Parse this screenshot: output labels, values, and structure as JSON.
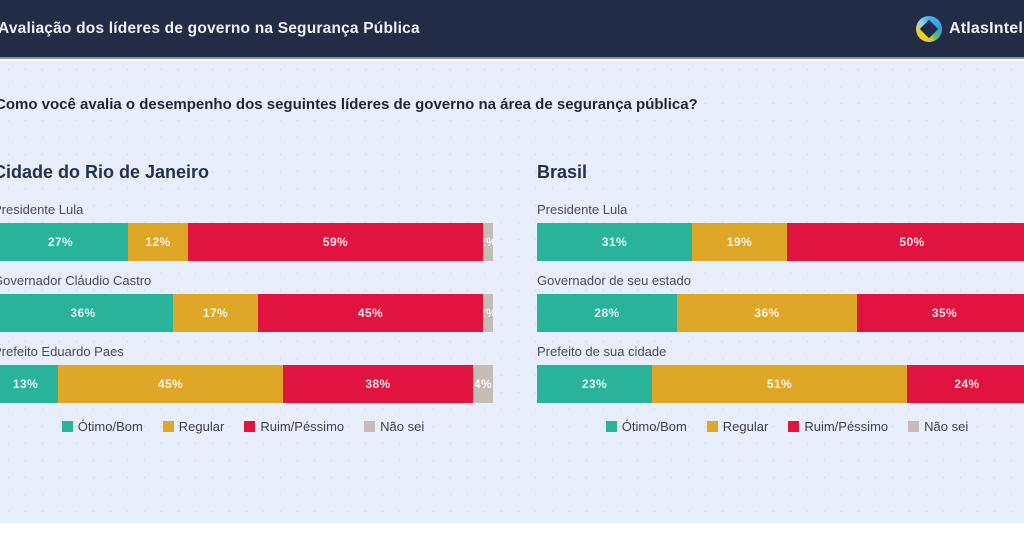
{
  "header": {
    "title": "Avaliação dos líderes de governo na Segurança Pública",
    "brand": "AtlasIntel"
  },
  "question": "Como você avalia o desempenho dos seguintes líderes de governo na área de segurança pública?",
  "colors": {
    "header_bg": "#232c47",
    "page_bg": "#e8eefb",
    "otimo_bom": "#29b39a",
    "regular": "#dfa728",
    "ruim_pessimo": "#e0143e",
    "nao_sei": "#c5bcb4"
  },
  "legend": {
    "items": [
      {
        "label": "Ótimo/Bom",
        "color": "#29b39a"
      },
      {
        "label": "Regular",
        "color": "#dfa728"
      },
      {
        "label": "Ruim/Péssimo",
        "color": "#e0143e"
      },
      {
        "label": "Não sei",
        "color": "#c5bcb4"
      }
    ]
  },
  "chart_data": [
    {
      "type": "bar",
      "stacked": true,
      "orientation": "horizontal",
      "unit": "%",
      "title": "Cidade do Rio de Janeiro",
      "series_names": [
        "Ótimo/Bom",
        "Regular",
        "Ruim/Péssimo",
        "Não sei"
      ],
      "rows": [
        {
          "category": "Presidente Lula",
          "segments": [
            {
              "name": "Ótimo/Bom",
              "pct": 27,
              "label": "27%",
              "color": "#29b39a"
            },
            {
              "name": "Regular",
              "pct": 12,
              "label": "12%",
              "color": "#dfa728"
            },
            {
              "name": "Ruim/Péssimo",
              "pct": 59,
              "label": "59%",
              "color": "#e0143e"
            },
            {
              "name": "Não sei",
              "pct": 2,
              "label": "2%",
              "color": "#c5bcb4"
            }
          ]
        },
        {
          "category": "Governador Cláudio Castro",
          "segments": [
            {
              "name": "Ótimo/Bom",
              "pct": 36,
              "label": "36%",
              "color": "#29b39a"
            },
            {
              "name": "Regular",
              "pct": 17,
              "label": "17%",
              "color": "#dfa728"
            },
            {
              "name": "Ruim/Péssimo",
              "pct": 45,
              "label": "45%",
              "color": "#e0143e"
            },
            {
              "name": "Não sei",
              "pct": 2,
              "label": "2%",
              "color": "#c5bcb4"
            }
          ]
        },
        {
          "category": "Prefeito Eduardo Paes",
          "segments": [
            {
              "name": "Ótimo/Bom",
              "pct": 13,
              "label": "13%",
              "color": "#29b39a"
            },
            {
              "name": "Regular",
              "pct": 45,
              "label": "45%",
              "color": "#dfa728"
            },
            {
              "name": "Ruim/Péssimo",
              "pct": 38,
              "label": "38%",
              "color": "#e0143e"
            },
            {
              "name": "Não sei",
              "pct": 4,
              "label": "4%",
              "color": "#c5bcb4"
            }
          ]
        }
      ]
    },
    {
      "type": "bar",
      "stacked": true,
      "orientation": "horizontal",
      "unit": "%",
      "title": "Brasil",
      "series_names": [
        "Ótimo/Bom",
        "Regular",
        "Ruim/Péssimo",
        "Não sei"
      ],
      "rows": [
        {
          "category": "Presidente Lula",
          "segments": [
            {
              "name": "Ótimo/Bom",
              "pct": 31,
              "label": "31%",
              "color": "#29b39a"
            },
            {
              "name": "Regular",
              "pct": 19,
              "label": "19%",
              "color": "#dfa728"
            },
            {
              "name": "Ruim/Péssimo",
              "pct": 50,
              "label": "50%",
              "color": "#e0143e"
            }
          ]
        },
        {
          "category": "Governador de seu estado",
          "segments": [
            {
              "name": "Ótimo/Bom",
              "pct": 28,
              "label": "28%",
              "color": "#29b39a"
            },
            {
              "name": "Regular",
              "pct": 36,
              "label": "36%",
              "color": "#dfa728"
            },
            {
              "name": "Ruim/Péssimo",
              "pct": 35,
              "label": "35%",
              "color": "#e0143e"
            }
          ]
        },
        {
          "category": "Prefeito de sua cidade",
          "segments": [
            {
              "name": "Ótimo/Bom",
              "pct": 23,
              "label": "23%",
              "color": "#29b39a"
            },
            {
              "name": "Regular",
              "pct": 51,
              "label": "51%",
              "color": "#dfa728"
            },
            {
              "name": "Ruim/Péssimo",
              "pct": 24,
              "label": "24%",
              "color": "#e0143e"
            }
          ]
        }
      ]
    }
  ]
}
